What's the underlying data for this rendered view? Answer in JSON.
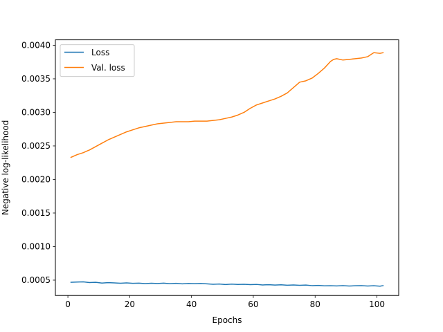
{
  "chart_data": {
    "type": "line",
    "title": "",
    "xlabel": "Epochs",
    "ylabel": "Negative log-likelihood",
    "xlim": [
      -4.05,
      107.05
    ],
    "ylim": [
      0.000271,
      0.004081
    ],
    "xticks": [
      0,
      20,
      40,
      60,
      80,
      100
    ],
    "yticks": [
      0.0005,
      0.001,
      0.0015,
      0.002,
      0.0025,
      0.003,
      0.0035,
      0.004
    ],
    "ytick_labels": [
      "0.0005",
      "0.0010",
      "0.0015",
      "0.0020",
      "0.0025",
      "0.0030",
      "0.0035",
      "0.0040"
    ],
    "grid": false,
    "legend_position": "top-left",
    "series": [
      {
        "name": "Loss",
        "color": "#1f77b4",
        "x": [
          1,
          3,
          5,
          7,
          9,
          11,
          13,
          15,
          17,
          19,
          21,
          23,
          25,
          27,
          29,
          31,
          33,
          35,
          37,
          39,
          41,
          43,
          45,
          47,
          49,
          51,
          53,
          55,
          57,
          59,
          61,
          63,
          65,
          67,
          69,
          71,
          73,
          75,
          77,
          79,
          81,
          83,
          85,
          87,
          89,
          91,
          93,
          95,
          97,
          99,
          101,
          102
        ],
        "y": [
          0.000468,
          0.000472,
          0.000474,
          0.000464,
          0.000468,
          0.000456,
          0.000463,
          0.000458,
          0.000454,
          0.000458,
          0.000452,
          0.000455,
          0.000448,
          0.000453,
          0.00045,
          0.000455,
          0.000447,
          0.000452,
          0.000445,
          0.00045,
          0.000447,
          0.000449,
          0.000444,
          0.000438,
          0.000442,
          0.000434,
          0.00044,
          0.000436,
          0.000438,
          0.000433,
          0.000436,
          0.000428,
          0.000432,
          0.000426,
          0.00043,
          0.000424,
          0.000428,
          0.000422,
          0.000426,
          0.000418,
          0.000421,
          0.000415,
          0.000416,
          0.000413,
          0.000418,
          0.000412,
          0.000416,
          0.000418,
          0.000412,
          0.000416,
          0.00041,
          0.000418
        ]
      },
      {
        "name": "Val. loss",
        "color": "#ff7f0e",
        "x": [
          1,
          3,
          5,
          7,
          9,
          11,
          13,
          15,
          17,
          19,
          21,
          23,
          25,
          27,
          29,
          31,
          33,
          35,
          37,
          39,
          41,
          43,
          45,
          47,
          49,
          51,
          53,
          55,
          57,
          59,
          61,
          63,
          65,
          67,
          69,
          71,
          73,
          75,
          77,
          79,
          81,
          83,
          85,
          86,
          87,
          89,
          91,
          93,
          95,
          97,
          99,
          101,
          102
        ],
        "y": [
          0.00233,
          0.00237,
          0.0024,
          0.00244,
          0.00249,
          0.00254,
          0.00259,
          0.00263,
          0.00267,
          0.00271,
          0.00274,
          0.00277,
          0.00279,
          0.00281,
          0.00283,
          0.00284,
          0.00285,
          0.00286,
          0.00286,
          0.00286,
          0.00287,
          0.00287,
          0.00287,
          0.00288,
          0.00289,
          0.00291,
          0.00293,
          0.00296,
          0.003,
          0.00306,
          0.00311,
          0.00314,
          0.00317,
          0.0032,
          0.00324,
          0.00329,
          0.00337,
          0.00345,
          0.00347,
          0.00351,
          0.00358,
          0.00366,
          0.00376,
          0.00379,
          0.0038,
          0.00378,
          0.00379,
          0.0038,
          0.00381,
          0.00383,
          0.00389,
          0.00388,
          0.00389
        ]
      }
    ]
  }
}
